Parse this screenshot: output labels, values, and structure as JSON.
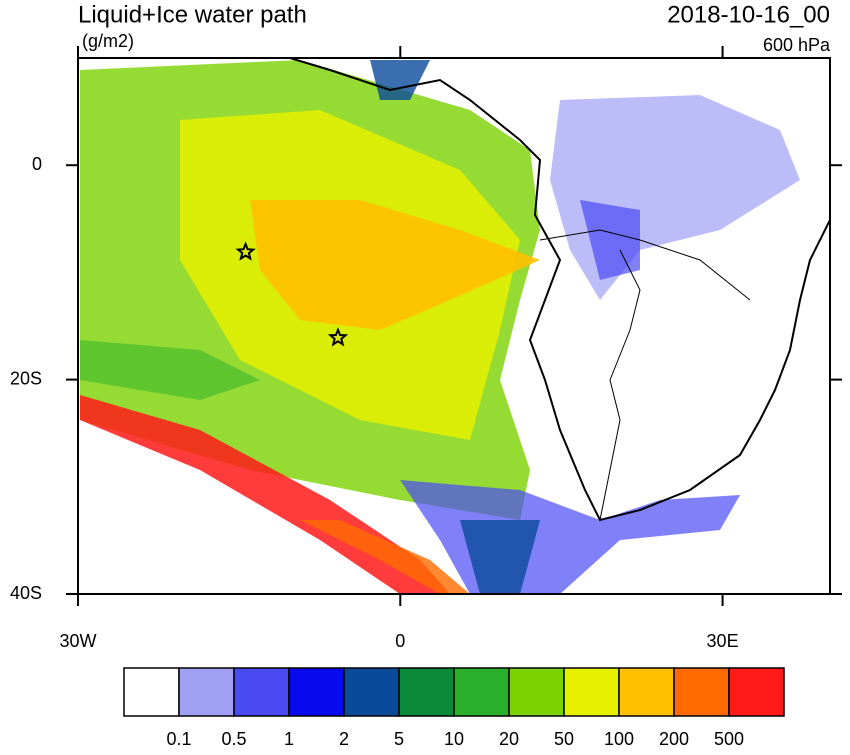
{
  "chart_data": {
    "type": "contour-map",
    "title": "Liquid+Ice water path",
    "units": "(g/m2)",
    "time": "2018-10-16_00",
    "level": "600 hPa",
    "xlim": [
      -30,
      40
    ],
    "ylim": [
      -40,
      10
    ],
    "xticks": [
      {
        "value": -30,
        "label": "30W"
      },
      0,
      {
        "value": 30,
        "label": "30E"
      }
    ],
    "yticks": [
      0,
      {
        "value": -20,
        "label": "20S"
      },
      {
        "value": -40,
        "label": "40S"
      }
    ],
    "markers": {
      "x": [
        -14.4,
        -5.8
      ],
      "y": [
        -8.1,
        -16.1
      ],
      "color": "#000000"
    },
    "colorbar": {
      "levels": [
        0.1,
        0.5,
        1,
        2,
        5,
        10,
        20,
        50,
        100,
        200,
        500
      ],
      "colors": [
        "#ffffff",
        "#a0a0f5",
        "#4a4af5",
        "#0a0af0",
        "#0a4a9a",
        "#0a8a3a",
        "#2ab02a",
        "#7ad200",
        "#e6f000",
        "#ffc000",
        "#ff6a00",
        "#ff1a1a"
      ]
    }
  }
}
